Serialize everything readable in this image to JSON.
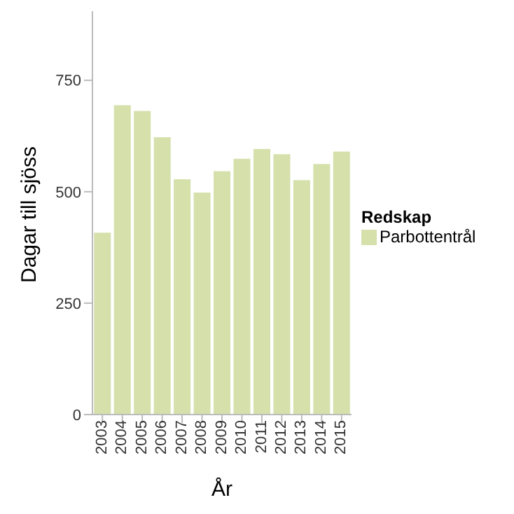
{
  "chart_data": {
    "type": "bar",
    "xlabel": "År",
    "ylabel": "Dagar till sjöss",
    "legend_title": "Redskap",
    "categories": [
      "2003",
      "2004",
      "2005",
      "2006",
      "2007",
      "2008",
      "2009",
      "2010",
      "2011",
      "2012",
      "2013",
      "2014",
      "2015"
    ],
    "series": [
      {
        "name": "Parbottentrål",
        "color": "#d5e0ab",
        "values": [
          408,
          694,
          681,
          622,
          528,
          498,
          546,
          574,
          596,
          584,
          526,
          562,
          590
        ]
      }
    ],
    "ylim": [
      0,
      905
    ],
    "yticks": [
      0,
      250,
      500,
      750
    ],
    "grid": false,
    "legend": "right"
  }
}
